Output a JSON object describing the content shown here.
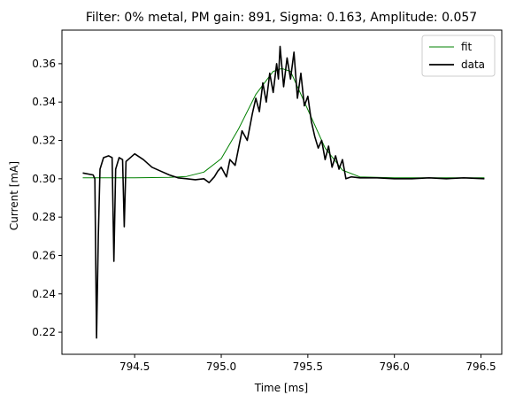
{
  "chart_data": {
    "type": "line",
    "title": "Filter: 0% metal, PM gain: 891, Sigma: 0.163, Amplitude: 0.057",
    "xlabel": "Time [ms]",
    "ylabel": "Current [mA]",
    "xlim": [
      794.08,
      796.62
    ],
    "ylim": [
      0.2085,
      0.3775
    ],
    "xticks": [
      794.5,
      795.0,
      795.5,
      796.0,
      796.5
    ],
    "xtick_labels": [
      "794.5",
      "795.0",
      "795.5",
      "796.0",
      "796.5"
    ],
    "yticks": [
      0.22,
      0.24,
      0.26,
      0.28,
      0.3,
      0.32,
      0.34,
      0.36
    ],
    "ytick_labels": [
      "0.22",
      "0.24",
      "0.26",
      "0.28",
      "0.30",
      "0.32",
      "0.34",
      "0.36"
    ],
    "grid": false,
    "legend_position": "top-right",
    "series": [
      {
        "name": "fit",
        "color": "#008000",
        "x": [
          794.2,
          794.5,
          794.7,
          794.8,
          794.9,
          795.0,
          795.1,
          795.2,
          795.3,
          795.35,
          795.4,
          795.5,
          795.6,
          795.7,
          795.8,
          796.0,
          796.52
        ],
        "y": [
          0.3005,
          0.3005,
          0.3007,
          0.3012,
          0.3035,
          0.3105,
          0.326,
          0.344,
          0.356,
          0.3575,
          0.356,
          0.336,
          0.316,
          0.3045,
          0.301,
          0.3005,
          0.3005
        ]
      },
      {
        "name": "data",
        "color": "#000000",
        "x": [
          794.2,
          794.26,
          794.27,
          794.28,
          794.29,
          794.3,
          794.32,
          794.35,
          794.37,
          794.38,
          794.39,
          794.41,
          794.43,
          794.44,
          794.45,
          794.5,
          794.55,
          794.6,
          794.65,
          794.7,
          794.75,
          794.8,
          794.85,
          794.9,
          794.93,
          794.96,
          794.98,
          795.0,
          795.03,
          795.05,
          795.08,
          795.1,
          795.12,
          795.15,
          795.18,
          795.2,
          795.22,
          795.24,
          795.26,
          795.28,
          795.3,
          795.32,
          795.33,
          795.34,
          795.36,
          795.38,
          795.4,
          795.42,
          795.44,
          795.46,
          795.48,
          795.5,
          795.52,
          795.54,
          795.56,
          795.58,
          795.6,
          795.62,
          795.64,
          795.66,
          795.68,
          795.7,
          795.72,
          795.75,
          795.8,
          795.9,
          796.0,
          796.1,
          796.2,
          796.3,
          796.4,
          796.52
        ],
        "y": [
          0.303,
          0.302,
          0.3,
          0.217,
          0.27,
          0.305,
          0.311,
          0.312,
          0.311,
          0.257,
          0.305,
          0.311,
          0.31,
          0.275,
          0.309,
          0.313,
          0.31,
          0.306,
          0.304,
          0.302,
          0.3005,
          0.3,
          0.2995,
          0.3,
          0.298,
          0.301,
          0.304,
          0.306,
          0.301,
          0.31,
          0.307,
          0.316,
          0.325,
          0.32,
          0.334,
          0.342,
          0.335,
          0.35,
          0.34,
          0.355,
          0.345,
          0.36,
          0.352,
          0.369,
          0.348,
          0.363,
          0.352,
          0.366,
          0.342,
          0.355,
          0.338,
          0.343,
          0.33,
          0.322,
          0.316,
          0.32,
          0.31,
          0.317,
          0.306,
          0.312,
          0.305,
          0.31,
          0.3,
          0.301,
          0.3005,
          0.3005,
          0.3,
          0.3,
          0.3005,
          0.3,
          0.3005,
          0.3
        ]
      }
    ]
  }
}
